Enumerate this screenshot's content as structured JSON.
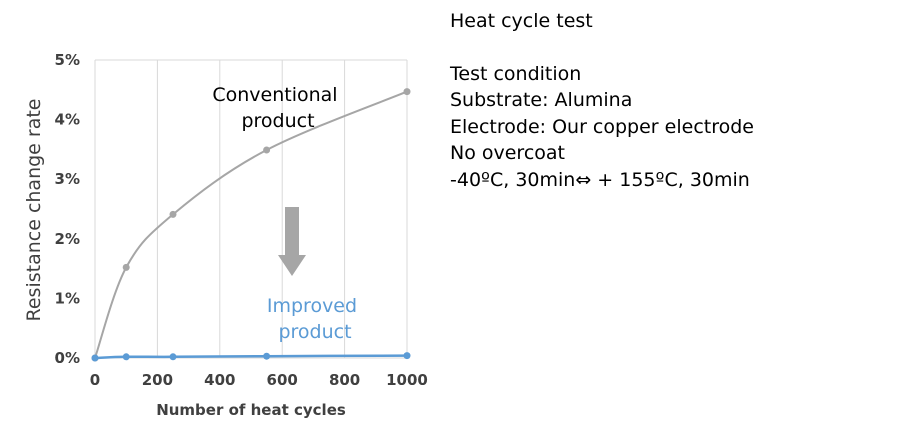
{
  "chart_data": {
    "type": "line",
    "xlabel": "Number of heat cycles",
    "ylabel": "Resistance change rate",
    "xlim": [
      0,
      1000
    ],
    "ylim": [
      0,
      5
    ],
    "x_ticks": [
      "0",
      "200",
      "400",
      "600",
      "800",
      "1000"
    ],
    "x_tick_values": [
      0,
      200,
      400,
      600,
      800,
      1000
    ],
    "y_ticks": [
      "0%",
      "1%",
      "2%",
      "3%",
      "4%",
      "5%"
    ],
    "y_tick_values": [
      0,
      1,
      2,
      3,
      4,
      5
    ],
    "grid": "vertical",
    "series": [
      {
        "label_lines": [
          "Conventional",
          "product"
        ],
        "color": "#a6a6a6",
        "x": [
          0,
          100,
          250,
          550,
          1000
        ],
        "y": [
          0,
          1.52,
          2.41,
          3.49,
          4.47
        ]
      },
      {
        "label_lines": [
          "Improved",
          "product"
        ],
        "color": "#5b9bd5",
        "x": [
          0,
          100,
          250,
          550,
          1000
        ],
        "y": [
          0,
          0.02,
          0.02,
          0.03,
          0.04
        ]
      }
    ],
    "arrow": {
      "direction": "down",
      "color": "#a6a6a6"
    }
  },
  "side_text": {
    "title": "Heat cycle test",
    "lines": [
      "Test condition",
      "Substrate: Alumina",
      "Electrode: Our copper electrode",
      "No overcoat",
      "-40ºC, 30min⇔ + 155ºC, 30min"
    ]
  }
}
